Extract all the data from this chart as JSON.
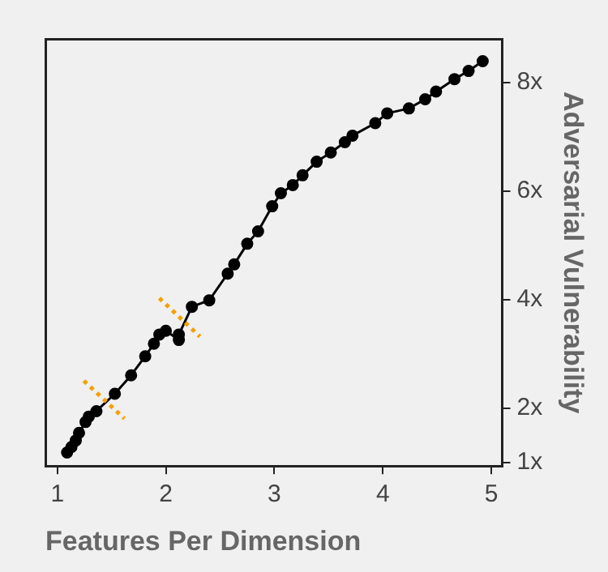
{
  "chart_data": {
    "type": "line",
    "xlabel": "Features Per Dimension",
    "ylabel": "Adversarial Vulnerability",
    "x": [
      1.09,
      1.13,
      1.17,
      1.2,
      1.26,
      1.29,
      1.36,
      1.53,
      1.68,
      1.81,
      1.89,
      1.94,
      2.0,
      2.12,
      2.12,
      2.24,
      2.4,
      2.57,
      2.63,
      2.75,
      2.85,
      2.98,
      3.06,
      3.17,
      3.26,
      3.39,
      3.52,
      3.65,
      3.72,
      3.93,
      4.04,
      4.24,
      4.39,
      4.49,
      4.66,
      4.79,
      4.92
    ],
    "series": [
      {
        "color": "#000000",
        "values": [
          1.19,
          1.29,
          1.41,
          1.55,
          1.75,
          1.85,
          1.95,
          2.27,
          2.61,
          2.96,
          3.19,
          3.36,
          3.43,
          3.26,
          3.36,
          3.87,
          3.99,
          4.48,
          4.65,
          5.03,
          5.26,
          5.72,
          5.96,
          6.11,
          6.29,
          6.54,
          6.71,
          6.9,
          7.02,
          7.25,
          7.43,
          7.52,
          7.69,
          7.83,
          8.06,
          8.21,
          8.39
        ]
      }
    ],
    "xlim": [
      0.89,
      5.1
    ],
    "xticks": [
      1,
      2,
      3,
      4,
      5
    ],
    "ylim": [
      0.94,
      8.8
    ],
    "yticks": [
      {
        "value": 1,
        "label": "1x"
      },
      {
        "value": 2,
        "label": "2x"
      },
      {
        "value": 4,
        "label": "4x"
      },
      {
        "value": 6,
        "label": "6x"
      },
      {
        "value": 8,
        "label": "8x"
      }
    ],
    "grid": false,
    "legend": false,
    "marker": "circle",
    "line_style": "solid"
  }
}
